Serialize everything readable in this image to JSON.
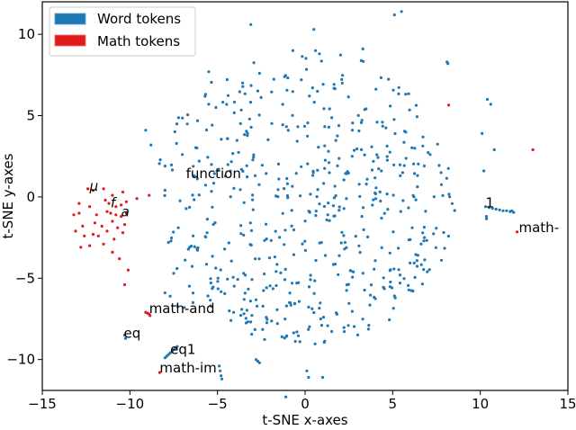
{
  "chart_data": {
    "type": "scatter",
    "title": "",
    "xlabel": "t-SNE x-axes",
    "ylabel": "t-SNE y-axes",
    "xlim": [
      -15,
      15
    ],
    "ylim": [
      -11.9,
      12.0
    ],
    "xticks": [
      -15,
      -10,
      -5,
      0,
      5,
      10,
      15
    ],
    "yticks": [
      -10,
      -5,
      0,
      5,
      10
    ],
    "xtick_labels": [
      "−15",
      "−10",
      "−5",
      "0",
      "5",
      "10",
      "15"
    ],
    "ytick_labels": [
      "−10",
      "−5",
      "0",
      "5",
      "10"
    ],
    "grid": false,
    "legend_position": "upper left",
    "legend": [
      {
        "label": "Word tokens",
        "color": "#1f77b4"
      },
      {
        "label": "Math tokens",
        "color": "#e31a1c"
      }
    ],
    "series": [
      {
        "name": "Word tokens",
        "color": "#1f77b4",
        "generated_cloud": {
          "center": [
            0.0,
            0.0
          ],
          "radius_x": 8.6,
          "radius_y": 9.2,
          "count": 560,
          "seed": 7
        },
        "points": [
          [
            -8.8,
            3.2
          ],
          [
            -8.0,
            1.9
          ],
          [
            -7.8,
            -2.8
          ],
          [
            -7.5,
            -4.7
          ],
          [
            -8.0,
            -5.9
          ],
          [
            -7.7,
            -6.1
          ],
          [
            -7.3,
            -6.7
          ],
          [
            -6.9,
            -6.8
          ],
          [
            -6.4,
            -6.5
          ],
          [
            -10.3,
            -8.5
          ],
          [
            -10.25,
            -8.7
          ],
          [
            -8.0,
            -9.9
          ],
          [
            -7.9,
            -9.8
          ],
          [
            -7.8,
            -9.7
          ],
          [
            -7.7,
            -9.6
          ],
          [
            -7.6,
            -9.5
          ],
          [
            -7.5,
            -9.4
          ],
          [
            -7.4,
            -9.3
          ],
          [
            -7.3,
            -9.2
          ],
          [
            -4.9,
            -10.4
          ],
          [
            -4.85,
            -10.7
          ],
          [
            -4.8,
            -11.0
          ],
          [
            -4.75,
            -11.2
          ],
          [
            -2.8,
            -10.0
          ],
          [
            -2.7,
            -10.1
          ],
          [
            -2.6,
            -10.2
          ],
          [
            0.1,
            -10.7
          ],
          [
            0.2,
            -11.1
          ],
          [
            1.0,
            -11.1
          ],
          [
            -1.1,
            -12.3
          ],
          [
            10.3,
            -0.6
          ],
          [
            10.5,
            -0.65
          ],
          [
            10.7,
            -0.7
          ],
          [
            10.9,
            -0.75
          ],
          [
            11.1,
            -0.8
          ],
          [
            11.3,
            -0.85
          ],
          [
            11.5,
            -0.85
          ],
          [
            11.7,
            -0.9
          ],
          [
            11.8,
            -0.85
          ],
          [
            11.9,
            -0.95
          ],
          [
            10.35,
            -1.2
          ],
          [
            10.35,
            -1.35
          ],
          [
            8.1,
            8.3
          ],
          [
            8.15,
            8.2
          ],
          [
            10.4,
            6.0
          ],
          [
            10.6,
            5.7
          ],
          [
            10.1,
            3.9
          ],
          [
            10.8,
            2.9
          ],
          [
            10.2,
            1.6
          ],
          [
            5.1,
            11.2
          ],
          [
            5.5,
            11.4
          ],
          [
            3.3,
            9.1
          ],
          [
            -3.1,
            10.6
          ],
          [
            0.5,
            10.3
          ],
          [
            -5.5,
            7.7
          ],
          [
            -2.6,
            7.6
          ],
          [
            -0.7,
            9.0
          ],
          [
            -5.5,
            5.7
          ],
          [
            -9.1,
            4.1
          ]
        ]
      },
      {
        "name": "Math tokens",
        "color": "#e31a1c",
        "points": [
          [
            -12.4,
            0.5
          ],
          [
            -12.1,
            0.4
          ],
          [
            -11.5,
            0.5
          ],
          [
            -11.0,
            0.1
          ],
          [
            -10.4,
            0.3
          ],
          [
            -9.6,
            -0.1
          ],
          [
            -8.9,
            0.1
          ],
          [
            -12.9,
            -0.4
          ],
          [
            -12.3,
            -0.6
          ],
          [
            -11.4,
            -0.2
          ],
          [
            -11.2,
            -0.4
          ],
          [
            -10.8,
            -0.6
          ],
          [
            -10.5,
            -0.5
          ],
          [
            -10.2,
            -0.3
          ],
          [
            -13.2,
            -1.1
          ],
          [
            -12.9,
            -1.0
          ],
          [
            -11.9,
            -1.1
          ],
          [
            -11.3,
            -0.9
          ],
          [
            -11.1,
            -1.0
          ],
          [
            -10.8,
            -1.1
          ],
          [
            -10.5,
            -1.2
          ],
          [
            -10.2,
            -1.0
          ],
          [
            -12.7,
            -1.8
          ],
          [
            -12.0,
            -1.6
          ],
          [
            -11.6,
            -1.8
          ],
          [
            -11.0,
            -1.5
          ],
          [
            -10.7,
            -1.9
          ],
          [
            -10.3,
            -1.7
          ],
          [
            -13.1,
            -2.1
          ],
          [
            -12.6,
            -2.4
          ],
          [
            -12.1,
            -2.3
          ],
          [
            -11.8,
            -2.4
          ],
          [
            -11.3,
            -2.1
          ],
          [
            -10.9,
            -2.6
          ],
          [
            -10.4,
            -2.2
          ],
          [
            -12.8,
            -3.1
          ],
          [
            -12.3,
            -3.0
          ],
          [
            -11.5,
            -2.9
          ],
          [
            -11.0,
            -3.4
          ],
          [
            -10.6,
            -3.8
          ],
          [
            -10.1,
            -4.5
          ],
          [
            -10.3,
            -5.4
          ],
          [
            -9.1,
            -7.1
          ],
          [
            -9.0,
            -7.15
          ],
          [
            -8.9,
            -7.2
          ],
          [
            -8.85,
            -7.3
          ],
          [
            -8.3,
            -10.8
          ],
          [
            8.2,
            5.65
          ],
          [
            13.0,
            2.9
          ],
          [
            12.1,
            -2.15
          ]
        ]
      }
    ],
    "annotations": [
      {
        "text": "μ",
        "x": -12.3,
        "y": 0.45,
        "italic": true
      },
      {
        "text": "f",
        "x": -11.1,
        "y": -0.6,
        "italic": true
      },
      {
        "text": "a",
        "x": -10.5,
        "y": -1.15,
        "italic": true
      },
      {
        "text": "function",
        "x": -6.8,
        "y": 1.2,
        "italic": false
      },
      {
        "text": "1",
        "x": 10.3,
        "y": -0.6,
        "italic": false
      },
      {
        "text": "math-",
        "x": 12.2,
        "y": -2.1,
        "italic": false
      },
      {
        "text": "math-and",
        "x": -8.9,
        "y": -7.1,
        "italic": false
      },
      {
        "text": "eq",
        "x": -10.35,
        "y": -8.6,
        "italic": false
      },
      {
        "text": "eq1",
        "x": -7.7,
        "y": -9.6,
        "italic": false
      },
      {
        "text": "math-im",
        "x": -8.3,
        "y": -10.75,
        "italic": false
      }
    ]
  }
}
